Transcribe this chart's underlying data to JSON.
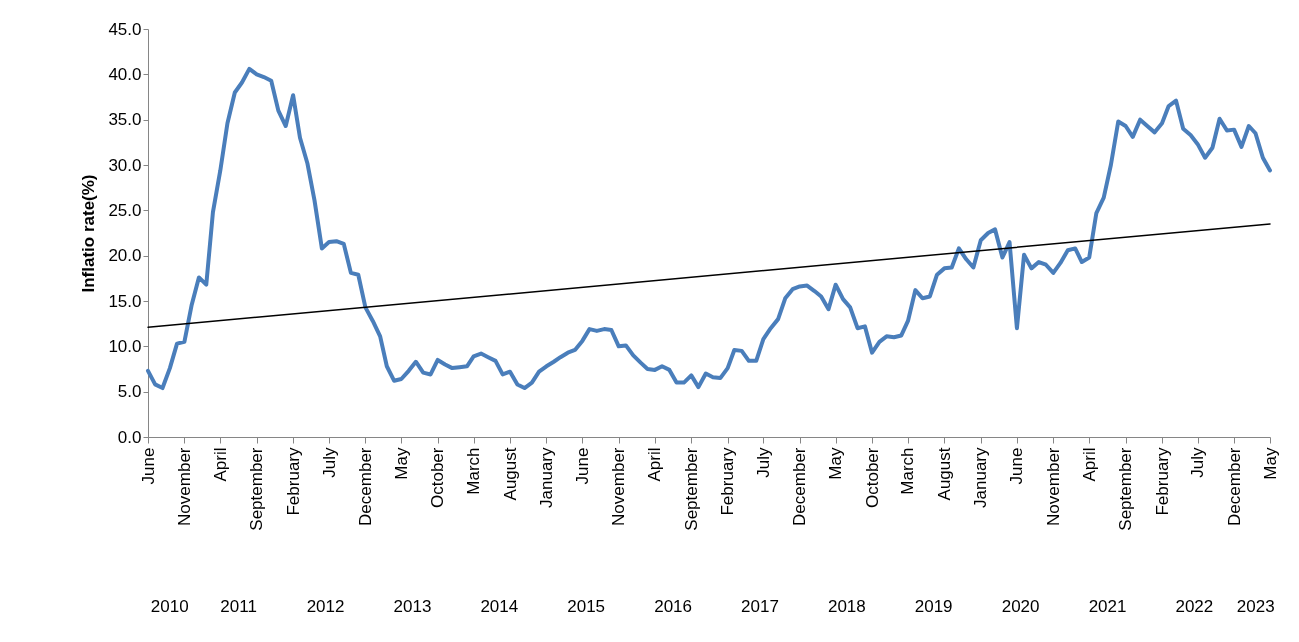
{
  "chart_data": {
    "type": "line",
    "ylabel": "Inflatio rate(%)",
    "x": [
      "2010-06",
      "2010-07",
      "2010-08",
      "2010-09",
      "2010-10",
      "2010-11",
      "2010-12",
      "2011-01",
      "2011-02",
      "2011-03",
      "2011-04",
      "2011-05",
      "2011-06",
      "2011-07",
      "2011-08",
      "2011-09",
      "2011-10",
      "2011-11",
      "2011-12",
      "2012-01",
      "2012-02",
      "2012-03",
      "2012-04",
      "2012-05",
      "2012-06",
      "2012-07",
      "2012-08",
      "2012-09",
      "2012-10",
      "2012-11",
      "2012-12",
      "2013-01",
      "2013-02",
      "2013-03",
      "2013-04",
      "2013-05",
      "2013-06",
      "2013-07",
      "2013-08",
      "2013-09",
      "2013-10",
      "2013-11",
      "2013-12",
      "2014-01",
      "2014-02",
      "2014-03",
      "2014-04",
      "2014-05",
      "2014-06",
      "2014-07",
      "2014-08",
      "2014-09",
      "2014-10",
      "2014-11",
      "2014-12",
      "2015-01",
      "2015-02",
      "2015-03",
      "2015-04",
      "2015-05",
      "2015-06",
      "2015-07",
      "2015-08",
      "2015-09",
      "2015-10",
      "2015-11",
      "2015-12",
      "2016-01",
      "2016-02",
      "2016-03",
      "2016-04",
      "2016-05",
      "2016-06",
      "2016-07",
      "2016-08",
      "2016-09",
      "2016-10",
      "2016-11",
      "2016-12",
      "2017-01",
      "2017-02",
      "2017-03",
      "2017-04",
      "2017-05",
      "2017-06",
      "2017-07",
      "2017-08",
      "2017-09",
      "2017-10",
      "2017-11",
      "2017-12",
      "2018-01",
      "2018-02",
      "2018-03",
      "2018-04",
      "2018-05",
      "2018-06",
      "2018-07",
      "2018-08",
      "2018-09",
      "2018-10",
      "2018-11",
      "2018-12",
      "2019-01",
      "2019-02",
      "2019-03",
      "2019-04",
      "2019-05",
      "2019-06",
      "2019-07",
      "2019-08",
      "2019-09",
      "2019-10",
      "2019-11",
      "2019-12",
      "2020-01",
      "2020-02",
      "2020-03",
      "2020-04",
      "2020-05",
      "2020-06",
      "2020-07",
      "2020-08",
      "2020-09",
      "2020-10",
      "2020-11",
      "2020-12",
      "2021-01",
      "2021-02",
      "2021-03",
      "2021-04",
      "2021-05",
      "2021-06",
      "2021-07",
      "2021-08",
      "2021-09",
      "2021-10",
      "2021-11",
      "2021-12",
      "2022-01",
      "2022-02",
      "2022-03",
      "2022-04",
      "2022-05",
      "2022-06",
      "2022-07",
      "2022-08",
      "2022-09",
      "2022-10",
      "2022-11",
      "2022-12",
      "2023-01",
      "2023-02",
      "2023-03",
      "2023-04",
      "2023-05"
    ],
    "series": [
      {
        "color": "#4a7ebb",
        "values": [
          7.3,
          5.8,
          5.4,
          7.6,
          10.3,
          10.5,
          14.5,
          17.6,
          16.8,
          24.8,
          29.4,
          34.6,
          38.0,
          39.1,
          40.6,
          40.0,
          39.7,
          39.3,
          36.0,
          34.3,
          37.7,
          33.0,
          30.2,
          26.1,
          20.8,
          21.5,
          21.6,
          21.3,
          18.1,
          17.9,
          14.3,
          12.8,
          11.1,
          7.8,
          6.2,
          6.4,
          7.3,
          8.3,
          7.1,
          6.9,
          8.5,
          8.0,
          7.6,
          7.7,
          7.8,
          8.9,
          9.2,
          8.8,
          8.4,
          6.9,
          7.2,
          5.8,
          5.4,
          6.0,
          7.2,
          7.8,
          8.3,
          8.8,
          9.3,
          9.6,
          10.6,
          11.9,
          11.7,
          11.9,
          11.8,
          10.0,
          10.1,
          9.0,
          8.2,
          7.5,
          7.4,
          7.8,
          7.4,
          6.0,
          6.0,
          6.8,
          5.5,
          7.0,
          6.6,
          6.5,
          7.6,
          9.6,
          9.5,
          8.4,
          8.4,
          10.8,
          12.0,
          13.0,
          15.3,
          16.3,
          16.6,
          16.7,
          16.1,
          15.5,
          14.1,
          16.8,
          15.2,
          14.3,
          12.0,
          12.2,
          9.3,
          10.5,
          11.1,
          11.0,
          11.2,
          12.8,
          16.2,
          15.3,
          15.5,
          17.9,
          18.6,
          18.7,
          20.8,
          19.6,
          18.7,
          21.7,
          22.5,
          22.9,
          19.8,
          21.5,
          12.0,
          20.1,
          18.6,
          19.3,
          19.0,
          18.1,
          19.2,
          20.6,
          20.8,
          19.3,
          19.8,
          24.7,
          26.4,
          30.0,
          34.8,
          34.3,
          33.1,
          35.0,
          34.3,
          33.6,
          34.6,
          36.5,
          37.1,
          34.0,
          33.3,
          32.3,
          30.8,
          31.9,
          35.1,
          33.8,
          33.9,
          32.0,
          34.3,
          33.5,
          30.8,
          29.4
        ]
      },
      {
        "type": "line",
        "color": "#000000",
        "x": [
          "2010-06",
          "2023-05"
        ],
        "values": [
          12.1,
          23.5
        ]
      }
    ],
    "xlim": [
      "2010-06",
      "2023-05"
    ],
    "xticks": [
      {
        "value": "2010-06",
        "label": "June"
      },
      {
        "value": "2010-11",
        "label": "November"
      },
      {
        "value": "2011-04",
        "label": "April"
      },
      {
        "value": "2011-09",
        "label": "September"
      },
      {
        "value": "2012-02",
        "label": "February"
      },
      {
        "value": "2012-07",
        "label": "July"
      },
      {
        "value": "2012-12",
        "label": "December"
      },
      {
        "value": "2013-05",
        "label": "May"
      },
      {
        "value": "2013-10",
        "label": "October"
      },
      {
        "value": "2014-03",
        "label": "March"
      },
      {
        "value": "2014-08",
        "label": "August"
      },
      {
        "value": "2015-01",
        "label": "January"
      },
      {
        "value": "2015-06",
        "label": "June"
      },
      {
        "value": "2015-11",
        "label": "November"
      },
      {
        "value": "2016-04",
        "label": "April"
      },
      {
        "value": "2016-09",
        "label": "September"
      },
      {
        "value": "2017-02",
        "label": "February"
      },
      {
        "value": "2017-07",
        "label": "July"
      },
      {
        "value": "2017-12",
        "label": "December"
      },
      {
        "value": "2018-05",
        "label": "May"
      },
      {
        "value": "2018-10",
        "label": "October"
      },
      {
        "value": "2019-03",
        "label": "March"
      },
      {
        "value": "2019-08",
        "label": "August"
      },
      {
        "value": "2020-01",
        "label": "January"
      },
      {
        "value": "2020-06",
        "label": "June"
      },
      {
        "value": "2020-11",
        "label": "November"
      },
      {
        "value": "2021-04",
        "label": "April"
      },
      {
        "value": "2021-09",
        "label": "September"
      },
      {
        "value": "2022-02",
        "label": "February"
      },
      {
        "value": "2022-07",
        "label": "July"
      },
      {
        "value": "2022-12",
        "label": "December"
      },
      {
        "value": "2023-05",
        "label": "May"
      }
    ],
    "ylim": [
      0,
      45
    ],
    "yticks": [
      {
        "value": 0,
        "label": "0.0"
      },
      {
        "value": 5,
        "label": "5.0"
      },
      {
        "value": 10,
        "label": "10.0"
      },
      {
        "value": 15,
        "label": "15.0"
      },
      {
        "value": 20,
        "label": "20.0"
      },
      {
        "value": 25,
        "label": "25.0"
      },
      {
        "value": 30,
        "label": "30.0"
      },
      {
        "value": 35,
        "label": "35.0"
      },
      {
        "value": 40,
        "label": "40.0"
      },
      {
        "value": 45,
        "label": "45.0"
      }
    ],
    "marker": "none",
    "annotations": [
      "2010",
      "2011",
      "2012",
      "2013",
      "2014",
      "2015",
      "2016",
      "2017",
      "2018",
      "2019",
      "2020",
      "2021",
      "2022",
      "2023"
    ]
  }
}
